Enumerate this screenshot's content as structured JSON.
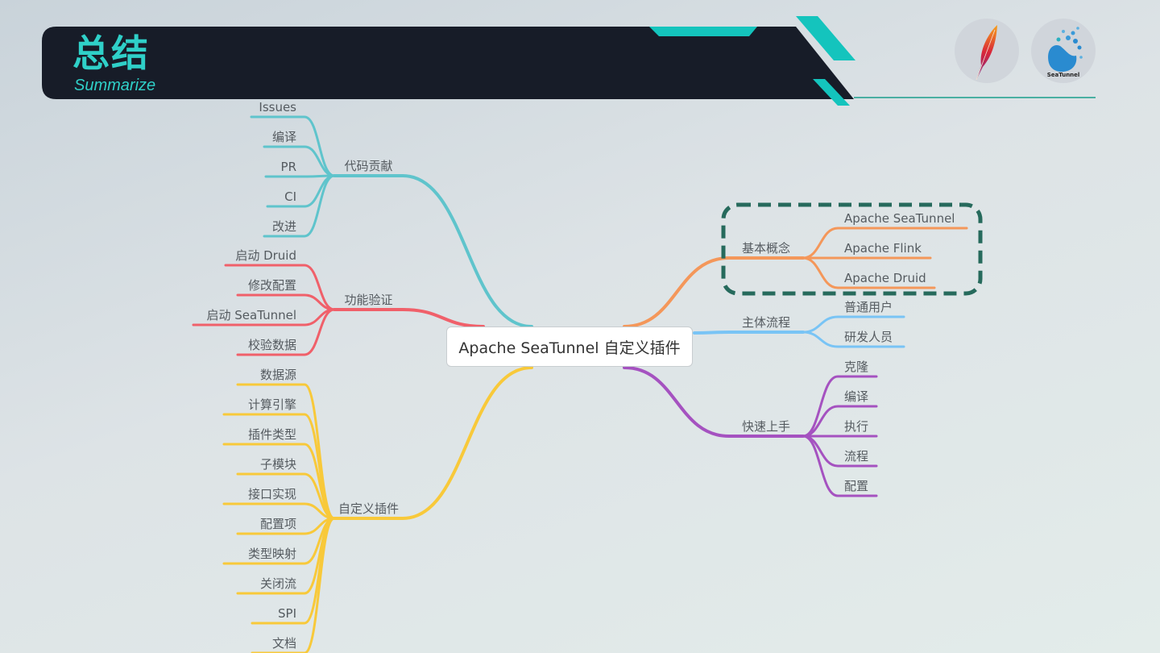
{
  "header": {
    "title": "总结",
    "subtitle": "Summarize",
    "accent_color": "#2fd0c8",
    "bar_color": "#171c28"
  },
  "logos": [
    {
      "name": "apache-feather-logo"
    },
    {
      "name": "seatunnel-logo",
      "text": "SeaTunnel"
    }
  ],
  "mindmap": {
    "root": "Apache SeaTunnel 自定义插件",
    "left": [
      {
        "label": "代码贡献",
        "color": "#5fc4cc",
        "children": [
          "Issues",
          "编译",
          "PR",
          "CI",
          "改进"
        ]
      },
      {
        "label": "功能验证",
        "color": "#f0606a",
        "children": [
          "启动 Druid",
          "修改配置",
          "启动 SeaTunnel",
          "校验数据"
        ]
      },
      {
        "label": "自定义插件",
        "color": "#f8c93a",
        "children": [
          "数据源",
          "计算引擎",
          "插件类型",
          "子模块",
          "接口实现",
          "配置项",
          "类型映射",
          "关闭流",
          "SPI",
          "文档"
        ]
      }
    ],
    "right": [
      {
        "label": "基本概念",
        "color": "#f4975a",
        "highlighted": true,
        "highlight_color": "#266a5c",
        "children": [
          "Apache SeaTunnel",
          "Apache Flink",
          "Apache Druid"
        ]
      },
      {
        "label": "主体流程",
        "color": "#79c4f5",
        "children": [
          "普通用户",
          "研发人员"
        ]
      },
      {
        "label": "快速上手",
        "color": "#a552c0",
        "children": [
          "克隆",
          "编译",
          "执行",
          "流程",
          "配置"
        ]
      }
    ]
  }
}
